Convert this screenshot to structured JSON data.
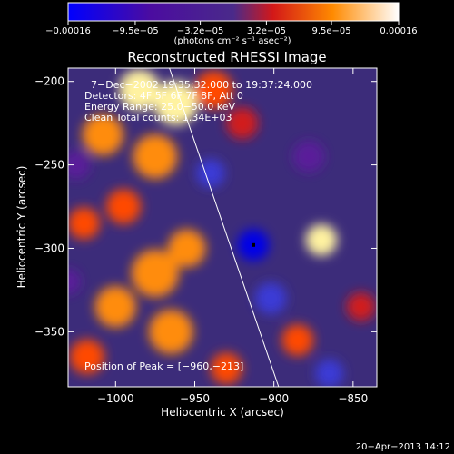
{
  "chart_data": {
    "type": "heatmap",
    "title": "Reconstructed RHESSI Image",
    "xlabel": "Heliocentric X (arcsec)",
    "ylabel": "Heliocentric Y (arcsec)",
    "xlim": [
      -1030,
      -835
    ],
    "ylim": [
      -383,
      -192
    ],
    "x_ticks": [
      -1000,
      -950,
      -900,
      -850
    ],
    "x_tick_labels": [
      "−1000",
      "−950",
      "−900",
      "−850"
    ],
    "y_ticks": [
      -200,
      -250,
      -300,
      -350
    ],
    "y_tick_labels": [
      "−200",
      "−250",
      "−300",
      "−350"
    ],
    "colorbar": {
      "unit_label": "(photons cm⁻² s⁻¹ asec⁻²)",
      "ticks": [
        -0.00016,
        -9.5e-05,
        -3.2e-05,
        3.2e-05,
        9.5e-05,
        0.00016
      ],
      "tick_labels": [
        "−0.00016",
        "−9.5e−05",
        "−3.2e−05",
        "3.2e−05",
        "9.5e−05",
        "0.00016"
      ],
      "range": [
        -0.00016,
        0.00016
      ]
    },
    "annotations": {
      "time": "7−Dec−2002 19:35:32.000 to 19:37:24.000",
      "detectors": "Detectors: 4F 5F 6F 7F 8F, Att 0",
      "energy": "Energy Range: 25.0−50.0 keV",
      "clean": "Clean    Total counts: 1.34E+03",
      "peak": "Position of Peak = [−960,−213]"
    },
    "peak_position": [
      -960,
      -213
    ],
    "limb_line": [
      [
        -966,
        -192
      ],
      [
        -897,
        -383
      ]
    ],
    "blobs": [
      {
        "x": -985,
        "y": -205,
        "v": 1.0,
        "r": 13
      },
      {
        "x": -962,
        "y": -213,
        "v": 1.0,
        "r": 14
      },
      {
        "x": -938,
        "y": -205,
        "v": 0.5,
        "r": 12
      },
      {
        "x": -1008,
        "y": -232,
        "v": 0.75,
        "r": 13
      },
      {
        "x": -975,
        "y": -245,
        "v": 0.8,
        "r": 14
      },
      {
        "x": -1020,
        "y": -285,
        "v": 0.6,
        "r": 10
      },
      {
        "x": -995,
        "y": -275,
        "v": 0.6,
        "r": 11
      },
      {
        "x": -975,
        "y": -315,
        "v": 0.85,
        "r": 15
      },
      {
        "x": -955,
        "y": -300,
        "v": 0.7,
        "r": 12
      },
      {
        "x": -1000,
        "y": -335,
        "v": 0.75,
        "r": 13
      },
      {
        "x": -965,
        "y": -350,
        "v": 0.7,
        "r": 14
      },
      {
        "x": -1018,
        "y": -365,
        "v": 0.55,
        "r": 11
      },
      {
        "x": -930,
        "y": -372,
        "v": 0.65,
        "r": 10
      },
      {
        "x": -870,
        "y": -295,
        "v": 0.95,
        "r": 10
      },
      {
        "x": -885,
        "y": -355,
        "v": 0.55,
        "r": 10
      },
      {
        "x": -845,
        "y": -335,
        "v": 0.35,
        "r": 9
      },
      {
        "x": -920,
        "y": -225,
        "v": 0.35,
        "r": 10
      },
      {
        "x": -913,
        "y": -298,
        "v": -1.0,
        "r": 10
      },
      {
        "x": -940,
        "y": -255,
        "v": -0.55,
        "r": 9
      },
      {
        "x": -902,
        "y": -330,
        "v": -0.6,
        "r": 10
      },
      {
        "x": -865,
        "y": -375,
        "v": -0.65,
        "r": 9
      },
      {
        "x": -878,
        "y": -245,
        "v": -0.4,
        "r": 10
      },
      {
        "x": -1025,
        "y": -250,
        "v": -0.35,
        "r": 9
      },
      {
        "x": -1030,
        "y": -320,
        "v": -0.35,
        "r": 8
      }
    ]
  },
  "footer_timestamp": "20−Apr−2013 14:12"
}
